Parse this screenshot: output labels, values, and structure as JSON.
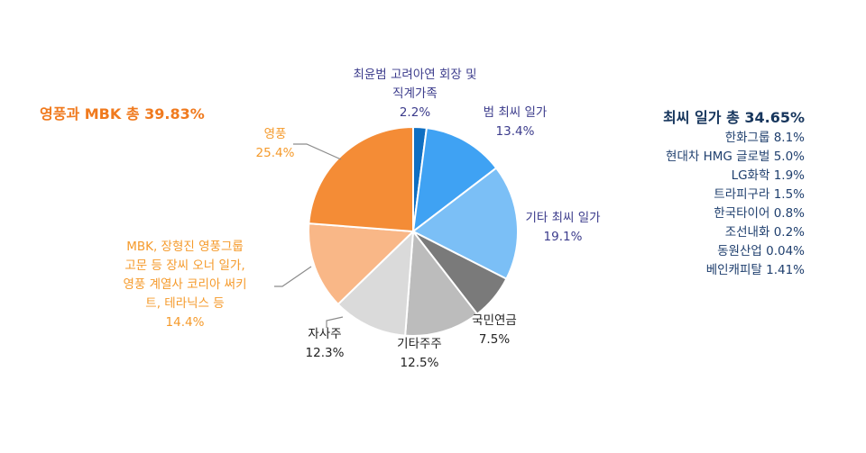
{
  "chart_data": {
    "type": "pie",
    "title": "",
    "start_angle": "12 o'clock",
    "direction": "clockwise",
    "slices": [
      {
        "label": "최윤범 고려아연 회장 및 직계가족",
        "value": 2.2,
        "display": "2.2%",
        "color": "#0f6fc2"
      },
      {
        "label": "범 최씨 일가",
        "value": 13.4,
        "display": "13.4%",
        "color": "#3fa2f3"
      },
      {
        "label": "기타 최씨 일가",
        "value": 19.1,
        "display": "19.1%",
        "color": "#7bbff6"
      },
      {
        "label": "국민연금",
        "value": 7.5,
        "display": "7.5%",
        "color": "#7a7a7a"
      },
      {
        "label": "기타주주",
        "value": 12.5,
        "display": "12.5%",
        "color": "#bcbcbc"
      },
      {
        "label": "자사주",
        "value": 12.3,
        "display": "12.3%",
        "color": "#dadada"
      },
      {
        "label": "MBK, 장형진 영풍그룹 고문 등 장씨 오너 일가, 영풍 계열사 코리아 써키트, 테라닉스 등",
        "value": 14.4,
        "display": "14.4%",
        "color": "#f9b787"
      },
      {
        "label": "영풍",
        "value": 25.4,
        "display": "25.4%",
        "color": "#f48c36"
      }
    ],
    "annotations": [
      "영풍과 MBK 총 39.83%",
      "최씨 일가 총 34.65%"
    ]
  },
  "labels": {
    "choi_family_direct": {
      "line1": "최윤범 고려아연 회장 및",
      "line2": "직계가족",
      "value": "2.2%"
    },
    "choi_broad": {
      "line1": "범 최씨 일가",
      "value": "13.4%"
    },
    "choi_other": {
      "line1": "기타 최씨 일가",
      "value": "19.1%"
    },
    "nps": {
      "line1": "국민연금",
      "value": "7.5%"
    },
    "other_holders": {
      "line1": "기타주주",
      "value": "12.5%"
    },
    "treasury": {
      "line1": "자사주",
      "value": "12.3%"
    },
    "mbk": {
      "line1": "MBK, 장형진 영풍그룹",
      "line2": "고문 등 장씨 오너 일가,",
      "line3": "영풍 계열사 코리아 써키",
      "line4": "트, 테라닉스 등",
      "value": "14.4%"
    },
    "youngpoong": {
      "line1": "영풍",
      "value": "25.4%"
    }
  },
  "left_group": {
    "title": "영풍과 MBK 총 39.83%"
  },
  "right_group": {
    "title": "최씨 일가 총 34.65%",
    "items": [
      "한화그룹 8.1%",
      "현대차 HMG 글로벌 5.0%",
      "LG화학 1.9%",
      "트라피구라 1.5%",
      "한국타이어 0.8%",
      "조선내화 0.2%",
      "동원산업 0.04%",
      "베인캐피탈 1.41%"
    ]
  }
}
